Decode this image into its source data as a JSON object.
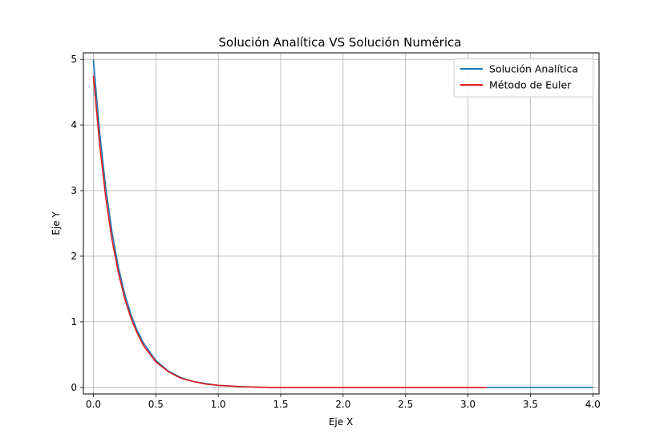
{
  "chart_data": {
    "type": "line",
    "title": "Solución Analítica VS Solución Numérica",
    "xlabel": "Eje X",
    "ylabel": "Eje Y",
    "xlim": [
      -0.08,
      4.05
    ],
    "ylim": [
      -0.1,
      5.1
    ],
    "x_ticks": [
      0.0,
      0.5,
      1.0,
      1.5,
      2.0,
      2.5,
      3.0,
      3.5,
      4.0
    ],
    "x_tick_labels": [
      "0.0",
      "0.5",
      "1.0",
      "1.5",
      "2.0",
      "2.5",
      "3.0",
      "3.5",
      "4.0"
    ],
    "y_ticks": [
      0,
      1,
      2,
      3,
      4,
      5
    ],
    "y_tick_labels": [
      "0",
      "1",
      "2",
      "3",
      "4",
      "5"
    ],
    "grid": true,
    "legend_position": "top-right",
    "series": [
      {
        "name": "Solución Analítica",
        "color": "#1f77b4",
        "x": [
          0.0,
          0.05,
          0.1,
          0.15,
          0.2,
          0.25,
          0.3,
          0.35,
          0.4,
          0.5,
          0.6,
          0.7,
          0.8,
          0.9,
          1.0,
          1.2,
          1.4,
          1.6,
          1.8,
          2.0,
          2.5,
          3.0,
          3.5,
          4.0
        ],
        "y": [
          5.0,
          3.89,
          3.03,
          2.36,
          1.84,
          1.43,
          1.12,
          0.87,
          0.68,
          0.41,
          0.25,
          0.15,
          0.09,
          0.06,
          0.03,
          0.01,
          0.0,
          0.0,
          0.0,
          0.0,
          0.0,
          0.0,
          0.0,
          0.0
        ]
      },
      {
        "name": "Método de Euler",
        "color": "#e41a1c",
        "x": [
          0.0,
          0.05,
          0.1,
          0.15,
          0.2,
          0.25,
          0.3,
          0.35,
          0.4,
          0.5,
          0.6,
          0.7,
          0.8,
          0.9,
          1.0,
          1.2,
          1.4,
          1.6,
          1.8,
          2.0,
          2.5,
          3.0,
          3.15
        ],
        "y": [
          4.75,
          3.7,
          2.88,
          2.24,
          1.75,
          1.36,
          1.06,
          0.83,
          0.64,
          0.39,
          0.24,
          0.14,
          0.09,
          0.05,
          0.03,
          0.01,
          0.0,
          0.0,
          0.0,
          0.0,
          0.0,
          0.0,
          0.0
        ]
      }
    ]
  }
}
